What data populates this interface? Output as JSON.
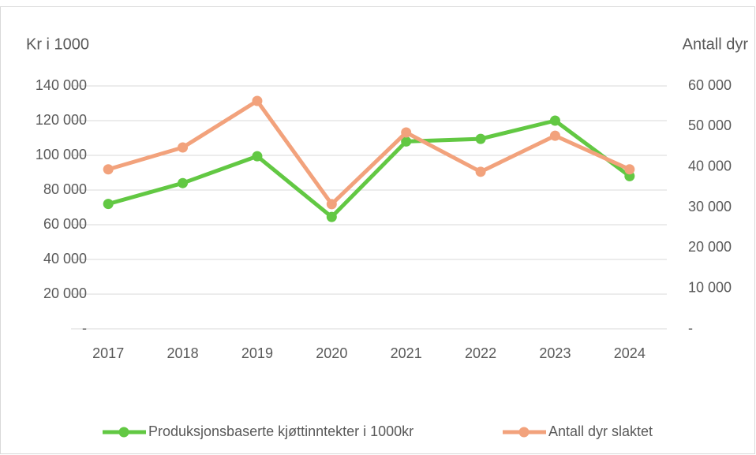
{
  "chart_data": {
    "type": "line",
    "y_label": "Kr i 1000",
    "y2_label": "Antall dyr",
    "categories": [
      "2017",
      "2018",
      "2019",
      "2020",
      "2021",
      "2022",
      "2023",
      "2024"
    ],
    "series": [
      {
        "name": "Produksjonsbaserte kjøttinntekter i 1000kr",
        "color": "#62c843",
        "values": [
          72000,
          84000,
          99500,
          64500,
          108000,
          109500,
          120000,
          88000
        ]
      },
      {
        "name": "Antall dyr slaktet",
        "color": "#f2a27c",
        "axis": "y2",
        "values": [
          39400,
          44800,
          56300,
          30800,
          48500,
          38800,
          47700,
          39400
        ]
      }
    ],
    "ylim": [
      0,
      140000
    ],
    "yticks": [
      {
        "value": 0,
        "label": "-"
      },
      {
        "value": 20000,
        "label": "20 000"
      },
      {
        "value": 40000,
        "label": "40 000"
      },
      {
        "value": 60000,
        "label": "60 000"
      },
      {
        "value": 80000,
        "label": "80 000"
      },
      {
        "value": 100000,
        "label": "100 000"
      },
      {
        "value": 120000,
        "label": "120 000"
      },
      {
        "value": 140000,
        "label": "140 000"
      }
    ],
    "y2lim": [
      0,
      60000
    ],
    "y2ticks": [
      {
        "value": 0,
        "label": "-"
      },
      {
        "value": 10000,
        "label": "10 000"
      },
      {
        "value": 20000,
        "label": "20 000"
      },
      {
        "value": 30000,
        "label": "30 000"
      },
      {
        "value": 40000,
        "label": "40 000"
      },
      {
        "value": 50000,
        "label": "50 000"
      },
      {
        "value": 60000,
        "label": "60 000"
      }
    ],
    "grid": true,
    "legend": "bottom"
  }
}
